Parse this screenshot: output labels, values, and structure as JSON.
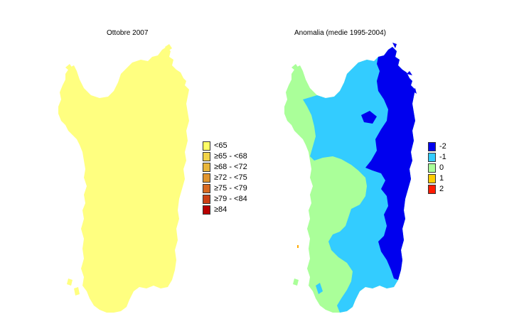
{
  "left_map": {
    "title": "Ottobre 2007",
    "fill_color": "#ffff80",
    "legend": [
      {
        "label": "<65",
        "color": "#ffff66"
      },
      {
        "label": "≥65 - <68",
        "color": "#f2d44a"
      },
      {
        "label": "≥68 - <72",
        "color": "#e8b63c"
      },
      {
        "label": "≥72 - <75",
        "color": "#e0952e"
      },
      {
        "label": "≥75 - <79",
        "color": "#d86a22"
      },
      {
        "label": "≥79 - <84",
        "color": "#cc4015"
      },
      {
        "label": "≥84",
        "color": "#b80000"
      }
    ]
  },
  "right_map": {
    "title": "Anomalia (medie 1995-2004)",
    "legend": [
      {
        "label": "-2",
        "color": "#0000ee"
      },
      {
        "label": "-1",
        "color": "#33ccff"
      },
      {
        "label": "0",
        "color": "#aaff99"
      },
      {
        "label": "1",
        "color": "#ffcc00"
      },
      {
        "label": "2",
        "color": "#ff1a00"
      }
    ]
  }
}
